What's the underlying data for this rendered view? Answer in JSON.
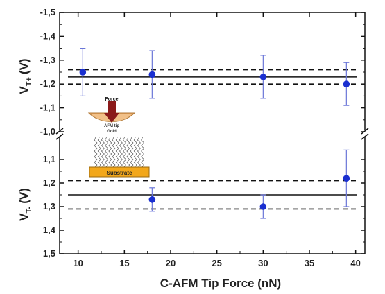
{
  "chart_data": {
    "type": "scatter",
    "x_axis": {
      "label": "C-AFM Tip Force (nN)",
      "range": [
        8,
        41
      ],
      "ticks": [
        "10",
        "15",
        "20",
        "25",
        "30",
        "35",
        "40"
      ],
      "tick_values": [
        10,
        15,
        20,
        25,
        30,
        35,
        40
      ]
    },
    "panels": [
      {
        "id": "upper",
        "ylabel_main": "V",
        "ylabel_sub": "T+",
        "ylabel_unit": "(V)",
        "ylim": [
          -1.5,
          -1.0
        ],
        "ytick_values": [
          -1.5,
          -1.4,
          -1.3,
          -1.2,
          -1.1,
          -1.0
        ],
        "ytick_labels": [
          "-1,5",
          "-1,4",
          "-1,3",
          "-1,2",
          "-1,1",
          "-1,0"
        ],
        "points": [
          {
            "x": 10.5,
            "y": -1.25,
            "err": 0.1
          },
          {
            "x": 18,
            "y": -1.24,
            "err": 0.1
          },
          {
            "x": 30,
            "y": -1.23,
            "err": 0.09
          },
          {
            "x": 39,
            "y": -1.2,
            "err": 0.09
          }
        ],
        "mean": -1.23,
        "band": [
          -1.26,
          -1.2
        ]
      },
      {
        "id": "lower",
        "ylabel_main": "V",
        "ylabel_sub": "T-",
        "ylabel_unit": "(V)",
        "ylim": [
          1.0,
          1.5
        ],
        "ytick_values": [
          1.1,
          1.2,
          1.3,
          1.4,
          1.5
        ],
        "ytick_labels": [
          "1,1",
          "1,2",
          "1,3",
          "1,4",
          "1,5"
        ],
        "points": [
          {
            "x": 18,
            "y": 1.27,
            "err": 0.05
          },
          {
            "x": 30,
            "y": 1.3,
            "err": 0.05
          },
          {
            "x": 39,
            "y": 1.18,
            "err": 0.12
          }
        ],
        "mean": 1.25,
        "band": [
          1.19,
          1.31
        ]
      }
    ],
    "colors": {
      "points": "#1a2fd0",
      "error_bars": "#6a76d8",
      "lines": "#111111",
      "substrate": "#f2a71b",
      "tip": "#e8a35a",
      "force_arrow": "#8b1a1a"
    },
    "inset": {
      "force_label": "Force",
      "tip_label_1": "AFM tip",
      "tip_label_2": "Gold",
      "substrate_label": "Substrate"
    }
  }
}
